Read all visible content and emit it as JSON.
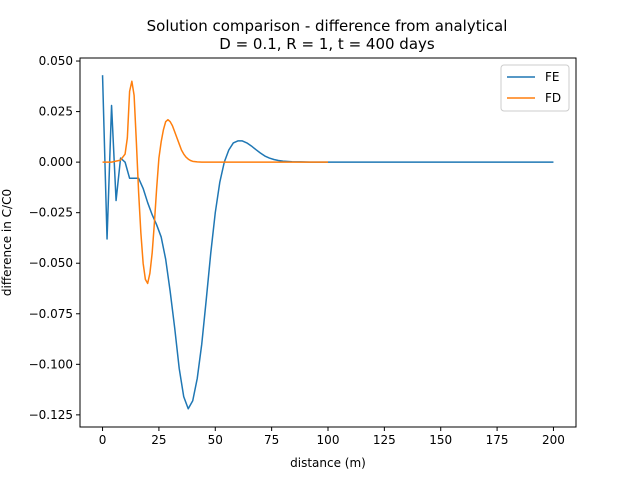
{
  "chart_data": {
    "type": "line",
    "title_lines": [
      "Solution comparison - difference from analytical",
      "D = 0.1, R = 1, t = 400 days"
    ],
    "xlabel": "distance (m)",
    "ylabel": "difference in C/C0",
    "xlim": [
      -10,
      210
    ],
    "ylim": [
      -0.131,
      0.0515
    ],
    "xticks": [
      0,
      25,
      50,
      75,
      100,
      125,
      150,
      175,
      200
    ],
    "xtick_labels": [
      "0",
      "25",
      "50",
      "75",
      "100",
      "125",
      "150",
      "175",
      "200"
    ],
    "yticks": [
      0.05,
      0.025,
      0.0,
      -0.025,
      -0.05,
      -0.075,
      -0.1,
      -0.125
    ],
    "ytick_labels": [
      "0.050",
      "0.025",
      "0.000",
      "−0.025",
      "−0.050",
      "−0.075",
      "−0.100",
      "−0.125"
    ],
    "grid": false,
    "legend_position": "top-right",
    "series": [
      {
        "name": "FE",
        "color": "#1f77b4",
        "points": [
          [
            0,
            0.043
          ],
          [
            2,
            -0.038
          ],
          [
            4,
            0.028
          ],
          [
            6,
            -0.019
          ],
          [
            8,
            0.002
          ],
          [
            10,
            0.0
          ],
          [
            12,
            -0.008
          ],
          [
            14,
            -0.008
          ],
          [
            16,
            -0.008
          ],
          [
            18,
            -0.013
          ],
          [
            20,
            -0.02
          ],
          [
            22,
            -0.026
          ],
          [
            24,
            -0.031
          ],
          [
            26,
            -0.037
          ],
          [
            28,
            -0.048
          ],
          [
            30,
            -0.064
          ],
          [
            32,
            -0.082
          ],
          [
            34,
            -0.102
          ],
          [
            36,
            -0.116
          ],
          [
            38,
            -0.122
          ],
          [
            40,
            -0.118
          ],
          [
            42,
            -0.107
          ],
          [
            44,
            -0.09
          ],
          [
            46,
            -0.068
          ],
          [
            48,
            -0.045
          ],
          [
            50,
            -0.025
          ],
          [
            52,
            -0.01
          ],
          [
            54,
            0.0
          ],
          [
            56,
            0.006
          ],
          [
            58,
            0.0095
          ],
          [
            60,
            0.0105
          ],
          [
            62,
            0.0105
          ],
          [
            64,
            0.0095
          ],
          [
            66,
            0.008
          ],
          [
            68,
            0.0062
          ],
          [
            70,
            0.0045
          ],
          [
            72,
            0.003
          ],
          [
            74,
            0.002
          ],
          [
            76,
            0.0013
          ],
          [
            78,
            0.0008
          ],
          [
            80,
            0.0005
          ],
          [
            84,
            0.0002
          ],
          [
            88,
            0.0001
          ],
          [
            92,
            0.0
          ],
          [
            100,
            0.0
          ],
          [
            200,
            0.0
          ]
        ]
      },
      {
        "name": "FD",
        "color": "#ff7f0e",
        "points": [
          [
            0,
            0.0
          ],
          [
            2,
            0.0
          ],
          [
            4,
            0.0
          ],
          [
            6,
            0.0005
          ],
          [
            8,
            0.001
          ],
          [
            10,
            0.004
          ],
          [
            11,
            0.012
          ],
          [
            12,
            0.035
          ],
          [
            13,
            0.04
          ],
          [
            14,
            0.033
          ],
          [
            15,
            0.01
          ],
          [
            16,
            -0.015
          ],
          [
            17,
            -0.035
          ],
          [
            18,
            -0.05
          ],
          [
            19,
            -0.058
          ],
          [
            20,
            -0.06
          ],
          [
            21,
            -0.055
          ],
          [
            22,
            -0.045
          ],
          [
            23,
            -0.03
          ],
          [
            24,
            -0.013
          ],
          [
            25,
            0.002
          ],
          [
            26,
            0.01
          ],
          [
            27,
            0.016
          ],
          [
            28,
            0.02
          ],
          [
            29,
            0.021
          ],
          [
            30,
            0.02
          ],
          [
            31,
            0.018
          ],
          [
            32,
            0.015
          ],
          [
            33,
            0.012
          ],
          [
            34,
            0.009
          ],
          [
            35,
            0.006
          ],
          [
            36,
            0.004
          ],
          [
            37,
            0.0025
          ],
          [
            38,
            0.0015
          ],
          [
            39,
            0.0008
          ],
          [
            40,
            0.0004
          ],
          [
            42,
            0.0001
          ],
          [
            44,
            0.0
          ],
          [
            60,
            0.0
          ],
          [
            80,
            0.0
          ],
          [
            100,
            0.0
          ]
        ]
      }
    ]
  }
}
